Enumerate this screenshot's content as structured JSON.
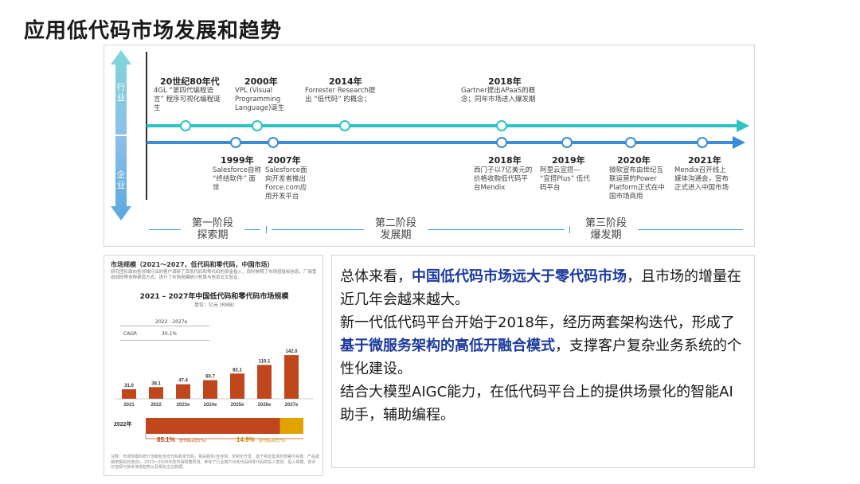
{
  "page": {
    "title": "应用低代码市场发展和趋势"
  },
  "timeline": {
    "side_labels": {
      "industry": "行\n业",
      "china": "企\n业"
    },
    "top_events": [
      {
        "year": "20世纪80年代",
        "desc": "4GL “第四代编程语言” 程序可视化编程诞生"
      },
      {
        "year": "2000年",
        "desc": "VPL (Visual Programming Language)诞生"
      },
      {
        "year": "2014年",
        "desc": "Forrester Research提出 “低代码” 的概念；"
      },
      {
        "year": "2018年",
        "desc": "Gartner提出APaaS的概念；同年市场进入爆发期"
      }
    ],
    "bottom_events": [
      {
        "year": "1999年",
        "desc": "Salesforce自称 “终结软件” 面世"
      },
      {
        "year": "2007年",
        "desc": "Salesforce面向开发者推出Force.com应用开发平台"
      },
      {
        "year": "2018年",
        "desc": "西门子以7亿美元的价格收购低代码平台Mendix"
      },
      {
        "year": "2019年",
        "desc": "阿里云宜搭— “宜搭Plus” 低代码平台"
      },
      {
        "year": "2020年",
        "desc": "微软宣布由世纪互联运营的Power Platform正式在中国市场商用"
      },
      {
        "year": "2021年",
        "desc": "Mendix召开线上媒体沟通会，宣布正式进入中国市场"
      }
    ],
    "phases": [
      {
        "name": "第一阶段",
        "sub": "探索期"
      },
      {
        "name": "第二阶段",
        "sub": "发展期"
      },
      {
        "name": "第三阶段",
        "sub": "爆发期"
      }
    ]
  },
  "chart_panel": {
    "heading": "市场规模（2021～2027，低代码和零代码，中国市场）",
    "intro": "研究团队面向各领域行业的客户调研了其低代码和零代码的资金投入，同时参照了市场招投标信息，厂商营收调研等多种渠道方式，进行了市场规模统计核算与信息交叉验证。",
    "title": "2021 – 2027年中国低代码和零代码市场规模",
    "unit": "单位：亿元 (RMB)",
    "cagr": {
      "period": "2022 - 2027e",
      "label": "CAGR",
      "value": "30.1%"
    },
    "share": {
      "year_label": "2022年",
      "lowcode_pct": "85.1%",
      "lowcode_label": "低代码占比(%)",
      "nocode_pct": "14.9%",
      "nocode_label": "零代码占比(%)"
    },
    "footnote": "注释：市场规模的统计范畴包含低代码和零代码，相关服务(含咨询、定制化开发、基于特定需求的部署与实施、产品或使用相关的培训)，2023～2026年的市场规模预测，参考了行业用户对低代码和零代码的投入意愿、投入规模、技术价值观与技术演进趋势以及相关企业数据。"
  },
  "chart_data": {
    "type": "bar",
    "title": "2021 – 2027年中国低代码和零代码市场规模",
    "ylabel": "单位：亿元 (RMB)",
    "categories": [
      "2021",
      "2022",
      "2023e",
      "2024e",
      "2025e",
      "2026e",
      "2027e"
    ],
    "values": [
      31.0,
      38.1,
      47.4,
      60.7,
      82.1,
      110.1,
      142.0
    ],
    "value_labels": [
      "31.0",
      "38.1",
      "47.4",
      "60.7",
      "82.1",
      "110.1",
      "142.0"
    ],
    "ylim": [
      0,
      150
    ],
    "grid": false,
    "bar_color": "#c0461e",
    "share_2022": {
      "lowcode": 85.1,
      "nocode": 14.9,
      "lowcode_color": "#c0461e",
      "nocode_color": "#e0a400"
    }
  },
  "text_panel": {
    "p1": {
      "a": "总体来看，",
      "hl": "中国低代码市场远大于零代码市场",
      "b": "，且市场的增量在近几年会越来越大。"
    },
    "p2": {
      "a": "新一代低代码平台开始于2018年，经历两套架构迭代，形成了",
      "hl": "基于微服务架构的高低开融合模式",
      "b": "，支撑客户复杂业务系统的个性化建设。"
    },
    "p3": "结合大模型AIGC能力，在低代码平台上的提供场景化的智能AI助手，辅助编程。"
  },
  "colors": {
    "teal_line": "#2ec4c4",
    "blue_line": "#3a8dd6",
    "highlight_text": "#1c3a9e"
  }
}
